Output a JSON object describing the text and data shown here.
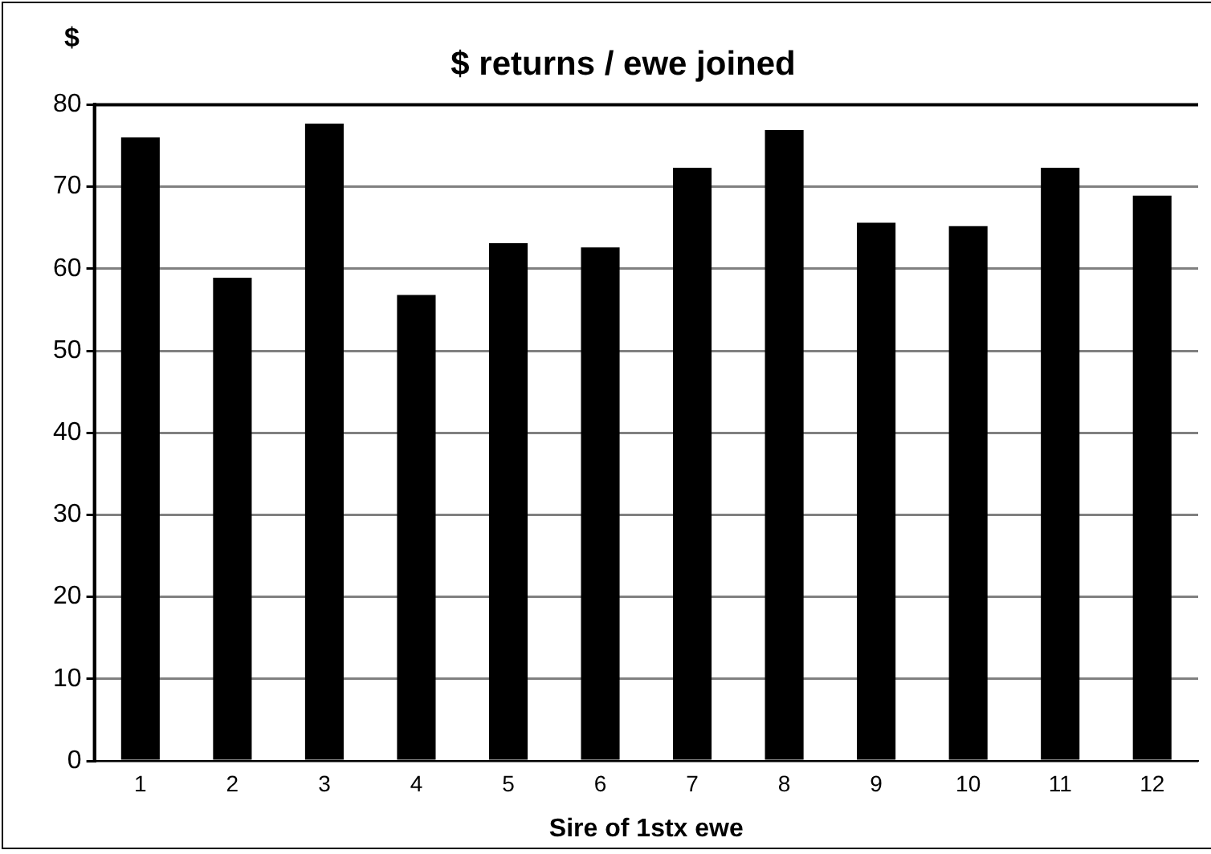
{
  "chart_data": {
    "type": "bar",
    "title": "$ returns / ewe joined",
    "xlabel": "Sire of 1stx ewe",
    "ylabel": "$",
    "categories": [
      "1",
      "2",
      "3",
      "4",
      "5",
      "6",
      "7",
      "8",
      "9",
      "10",
      "11",
      "12"
    ],
    "values": [
      76.0,
      58.9,
      77.7,
      56.8,
      63.1,
      62.6,
      72.3,
      76.9,
      65.6,
      65.2,
      72.3,
      68.9
    ],
    "color": "#000000",
    "ylim": [
      0,
      80
    ],
    "yticks": [
      0,
      10,
      20,
      30,
      40,
      50,
      60,
      70,
      80
    ],
    "grid": "y"
  }
}
